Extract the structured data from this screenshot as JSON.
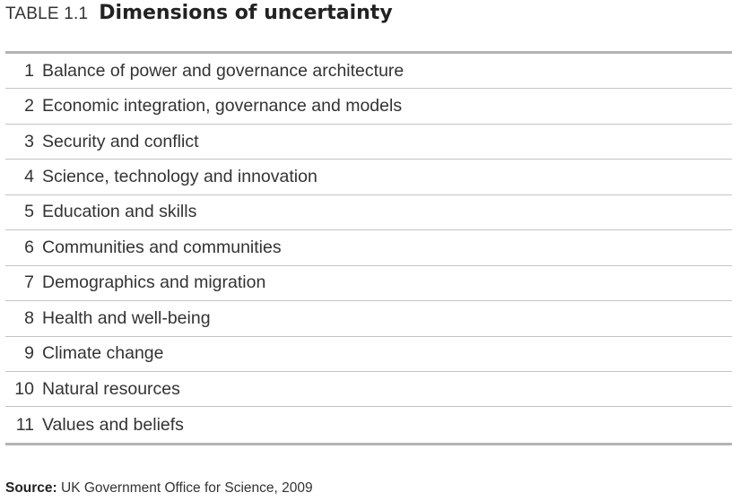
{
  "caption": {
    "label": "TABLE 1.1",
    "title": "Dimensions of uncertainty"
  },
  "rows": [
    {
      "num": "1",
      "text": "Balance of power and governance architecture"
    },
    {
      "num": "2",
      "text": "Economic integration, governance and models"
    },
    {
      "num": "3",
      "text": "Security and conflict"
    },
    {
      "num": "4",
      "text": "Science, technology and innovation"
    },
    {
      "num": "5",
      "text": "Education and skills"
    },
    {
      "num": "6",
      "text": "Communities and communities"
    },
    {
      "num": "7",
      "text": "Demographics and migration"
    },
    {
      "num": "8",
      "text": "Health and well-being"
    },
    {
      "num": "9",
      "text": "Climate change"
    },
    {
      "num": "10",
      "text": "Natural resources"
    },
    {
      "num": "11",
      "text": "Values and beliefs"
    }
  ],
  "source": {
    "label": "Source:",
    "text": "UK Government Office for Science, 2009"
  }
}
